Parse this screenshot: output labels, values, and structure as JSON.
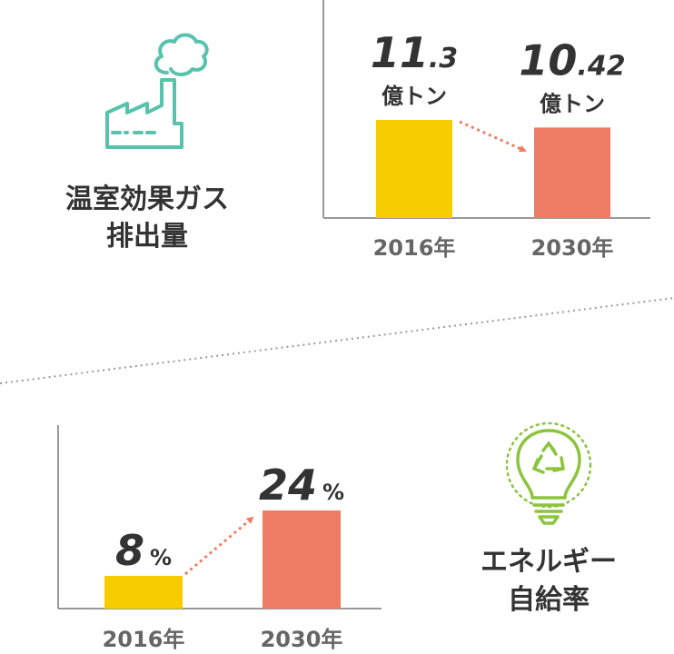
{
  "colors": {
    "bar_2016": "#f8cd00",
    "bar_2030": "#ee7c64",
    "arrow": "#ee7c64",
    "factory_icon": "#58c3ad",
    "bulb_icon": "#8cc43e",
    "axis": "#999999",
    "divider": "#999999"
  },
  "icons": {
    "top": "factory-icon",
    "bottom": "lightbulb-recycle-icon"
  },
  "chart_data": [
    {
      "type": "bar",
      "caption_lines": [
        "温室効果ガス",
        "排出量"
      ],
      "categories": [
        "2016年",
        "2030年"
      ],
      "values": [
        11.3,
        10.42
      ],
      "labels": [
        {
          "main": "11",
          "frac": ".3",
          "unit": "億トン"
        },
        {
          "main": "10",
          "frac": ".42",
          "unit": "億トン"
        }
      ],
      "ylim": [
        0,
        11.3
      ]
    },
    {
      "type": "bar",
      "caption_lines": [
        "エネルギー",
        "自給率"
      ],
      "categories": [
        "2016年",
        "2030年"
      ],
      "values": [
        8,
        24
      ],
      "labels": [
        {
          "main": "8",
          "frac": "",
          "unit": "%"
        },
        {
          "main": "24",
          "frac": "",
          "unit": "%"
        }
      ],
      "ylim": [
        0,
        24
      ]
    }
  ]
}
